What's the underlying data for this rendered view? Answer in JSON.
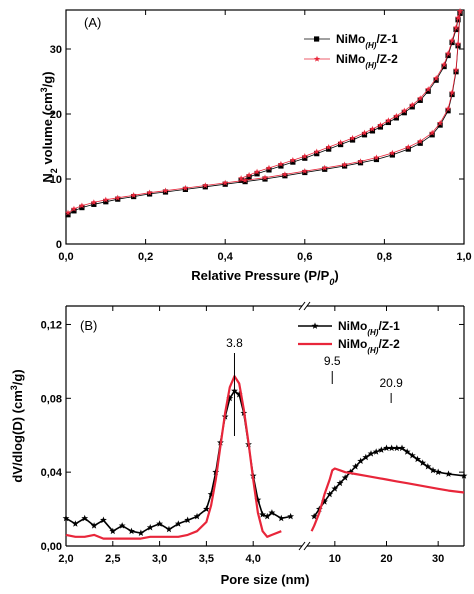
{
  "chart_data": [
    {
      "type": "scatter",
      "panel_label": "(A)",
      "xlabel": "Relative Pressure (P/P₀)",
      "ylabel": "N₂ volume (cm³/g)",
      "xlim": [
        0.0,
        1.0
      ],
      "ylim": [
        0,
        36
      ],
      "xticks": [
        "0,0",
        "0,2",
        "0,4",
        "0,6",
        "0,8",
        "1,0"
      ],
      "yticks": [
        "0",
        "10",
        "20",
        "30"
      ],
      "legend_position": "top-right",
      "series": [
        {
          "name": "NiMo(H)/Z-1",
          "marker": "square",
          "color": "#000000",
          "adsorption": {
            "x": [
              0.005,
              0.02,
              0.04,
              0.07,
              0.1,
              0.13,
              0.17,
              0.21,
              0.25,
              0.3,
              0.35,
              0.4,
              0.45,
              0.5,
              0.55,
              0.6,
              0.65,
              0.7,
              0.74,
              0.78,
              0.82,
              0.86,
              0.89,
              0.92,
              0.94,
              0.96,
              0.97,
              0.98,
              0.985,
              0.99
            ],
            "y": [
              4.5,
              5.1,
              5.6,
              6.1,
              6.5,
              6.9,
              7.3,
              7.7,
              8.0,
              8.4,
              8.8,
              9.2,
              9.6,
              10.0,
              10.5,
              11.0,
              11.5,
              12.0,
              12.5,
              13.0,
              13.7,
              14.6,
              15.5,
              16.8,
              18.3,
              20.5,
              23,
              26.5,
              30.5,
              35.5
            ]
          },
          "desorption": {
            "x": [
              0.99,
              0.985,
              0.98,
              0.97,
              0.96,
              0.95,
              0.93,
              0.91,
              0.89,
              0.87,
              0.85,
              0.83,
              0.81,
              0.79,
              0.77,
              0.75,
              0.72,
              0.69,
              0.66,
              0.63,
              0.6,
              0.57,
              0.54,
              0.51,
              0.48,
              0.46,
              0.44
            ],
            "y": [
              35.5,
              34.5,
              33,
              31,
              29,
              27.3,
              25.2,
              23.5,
              22.1,
              21.1,
              20.2,
              19.4,
              18.7,
              18.0,
              17.4,
              16.8,
              16.0,
              15.3,
              14.6,
              13.9,
              13.2,
              12.6,
              12.0,
              11.4,
              10.8,
              10.3,
              9.8
            ]
          }
        },
        {
          "name": "NiMo(H)/Z-2",
          "marker": "star",
          "color": "#e8263a",
          "adsorption": {
            "x": [
              0.005,
              0.02,
              0.04,
              0.07,
              0.1,
              0.13,
              0.17,
              0.21,
              0.25,
              0.3,
              0.35,
              0.4,
              0.45,
              0.5,
              0.55,
              0.6,
              0.65,
              0.7,
              0.74,
              0.78,
              0.82,
              0.86,
              0.89,
              0.92,
              0.94,
              0.96,
              0.97,
              0.98,
              0.985,
              0.99
            ],
            "y": [
              4.8,
              5.4,
              5.9,
              6.4,
              6.8,
              7.1,
              7.5,
              7.9,
              8.2,
              8.6,
              9.0,
              9.4,
              9.8,
              10.2,
              10.7,
              11.2,
              11.7,
              12.2,
              12.7,
              13.3,
              14.0,
              14.9,
              15.8,
              17.1,
              18.6,
              20.8,
              23.3,
              26.8,
              30.8,
              35.8
            ]
          },
          "desorption": {
            "x": [
              0.99,
              0.985,
              0.98,
              0.97,
              0.96,
              0.95,
              0.93,
              0.91,
              0.89,
              0.87,
              0.85,
              0.83,
              0.81,
              0.79,
              0.77,
              0.75,
              0.72,
              0.69,
              0.66,
              0.63,
              0.6,
              0.57,
              0.54,
              0.51,
              0.48,
              0.46,
              0.44
            ],
            "y": [
              35.8,
              34.8,
              33.3,
              31.3,
              29.3,
              27.6,
              25.5,
              23.8,
              22.4,
              21.4,
              20.5,
              19.7,
              19.0,
              18.3,
              17.7,
              17.1,
              16.3,
              15.6,
              14.9,
              14.2,
              13.5,
              12.9,
              12.3,
              11.7,
              11.1,
              10.6,
              10.1
            ]
          }
        }
      ]
    },
    {
      "type": "line",
      "panel_label": "(B)",
      "xlabel": "Pore size (nm)",
      "ylabel": "dV/dlog(D) (cm³/g)",
      "ylim": [
        0,
        0.13
      ],
      "xlim_left": [
        2.0,
        4.5
      ],
      "xlim_right": [
        5,
        35
      ],
      "xticks_left": [
        "2,0",
        "2,5",
        "3,0",
        "3,5",
        "4,0"
      ],
      "xticks_right": [
        "10",
        "20",
        "30"
      ],
      "yticks": [
        "0,00",
        "0,04",
        "0,08",
        "0,12"
      ],
      "legend_position": "top-right",
      "series": [
        {
          "name": "NiMo(H)/Z-1",
          "color": "#000000",
          "marker": "star",
          "left": {
            "x": [
              2.0,
              2.1,
              2.2,
              2.3,
              2.4,
              2.5,
              2.6,
              2.7,
              2.8,
              2.9,
              3.0,
              3.1,
              3.2,
              3.3,
              3.4,
              3.5,
              3.55,
              3.6,
              3.65,
              3.7,
              3.75,
              3.8,
              3.85,
              3.9,
              3.95,
              4.0,
              4.05,
              4.1,
              4.15,
              4.2,
              4.3,
              4.4
            ],
            "y": [
              0.015,
              0.012,
              0.015,
              0.011,
              0.014,
              0.008,
              0.011,
              0.008,
              0.007,
              0.01,
              0.012,
              0.009,
              0.012,
              0.014,
              0.016,
              0.02,
              0.028,
              0.04,
              0.056,
              0.07,
              0.08,
              0.084,
              0.082,
              0.072,
              0.055,
              0.038,
              0.025,
              0.017,
              0.016,
              0.018,
              0.015,
              0.016
            ]
          },
          "right": {
            "x": [
              6,
              7,
              8,
              9,
              10,
              11,
              12,
              13,
              14,
              15,
              16,
              17,
              18,
              19,
              20,
              21,
              22,
              23,
              24,
              25,
              26,
              27,
              28,
              29,
              30,
              32,
              35
            ],
            "y": [
              0.016,
              0.02,
              0.024,
              0.028,
              0.031,
              0.034,
              0.037,
              0.04,
              0.043,
              0.046,
              0.048,
              0.05,
              0.051,
              0.052,
              0.053,
              0.053,
              0.053,
              0.053,
              0.051,
              0.049,
              0.047,
              0.045,
              0.043,
              0.041,
              0.04,
              0.039,
              0.038
            ]
          }
        },
        {
          "name": "NiMo(H)/Z-2",
          "color": "#e8263a",
          "left": {
            "x": [
              2.0,
              2.1,
              2.2,
              2.3,
              2.4,
              2.5,
              2.6,
              2.7,
              2.8,
              2.9,
              3.0,
              3.1,
              3.2,
              3.3,
              3.4,
              3.5,
              3.55,
              3.6,
              3.65,
              3.7,
              3.75,
              3.8,
              3.85,
              3.9,
              3.95,
              4.0,
              4.05,
              4.1,
              4.15,
              4.2,
              4.3
            ],
            "y": [
              0.006,
              0.005,
              0.005,
              0.006,
              0.004,
              0.004,
              0.004,
              0.004,
              0.004,
              0.005,
              0.005,
              0.005,
              0.005,
              0.006,
              0.008,
              0.013,
              0.022,
              0.036,
              0.054,
              0.072,
              0.086,
              0.092,
              0.088,
              0.074,
              0.056,
              0.036,
              0.018,
              0.008,
              0.005,
              0.006,
              0.008
            ]
          },
          "right": {
            "x": [
              5.5,
              6,
              7,
              8,
              9,
              9.5,
              10,
              11,
              12,
              14,
              16,
              18,
              20,
              22,
              24,
              26,
              28,
              30,
              32,
              35
            ],
            "y": [
              0.008,
              0.011,
              0.018,
              0.028,
              0.036,
              0.041,
              0.042,
              0.041,
              0.04,
              0.039,
              0.038,
              0.037,
              0.036,
              0.035,
              0.034,
              0.033,
              0.032,
              0.031,
              0.03,
              0.029
            ]
          }
        }
      ],
      "annotations": [
        {
          "label": "3.8",
          "x": 3.8,
          "y": 0.092,
          "segment": "left"
        },
        {
          "label": "9.5",
          "x": 9.5,
          "y": 0.042,
          "segment": "right"
        },
        {
          "label": "20.9",
          "x": 20.9,
          "y": 0.053,
          "segment": "right"
        }
      ]
    }
  ]
}
